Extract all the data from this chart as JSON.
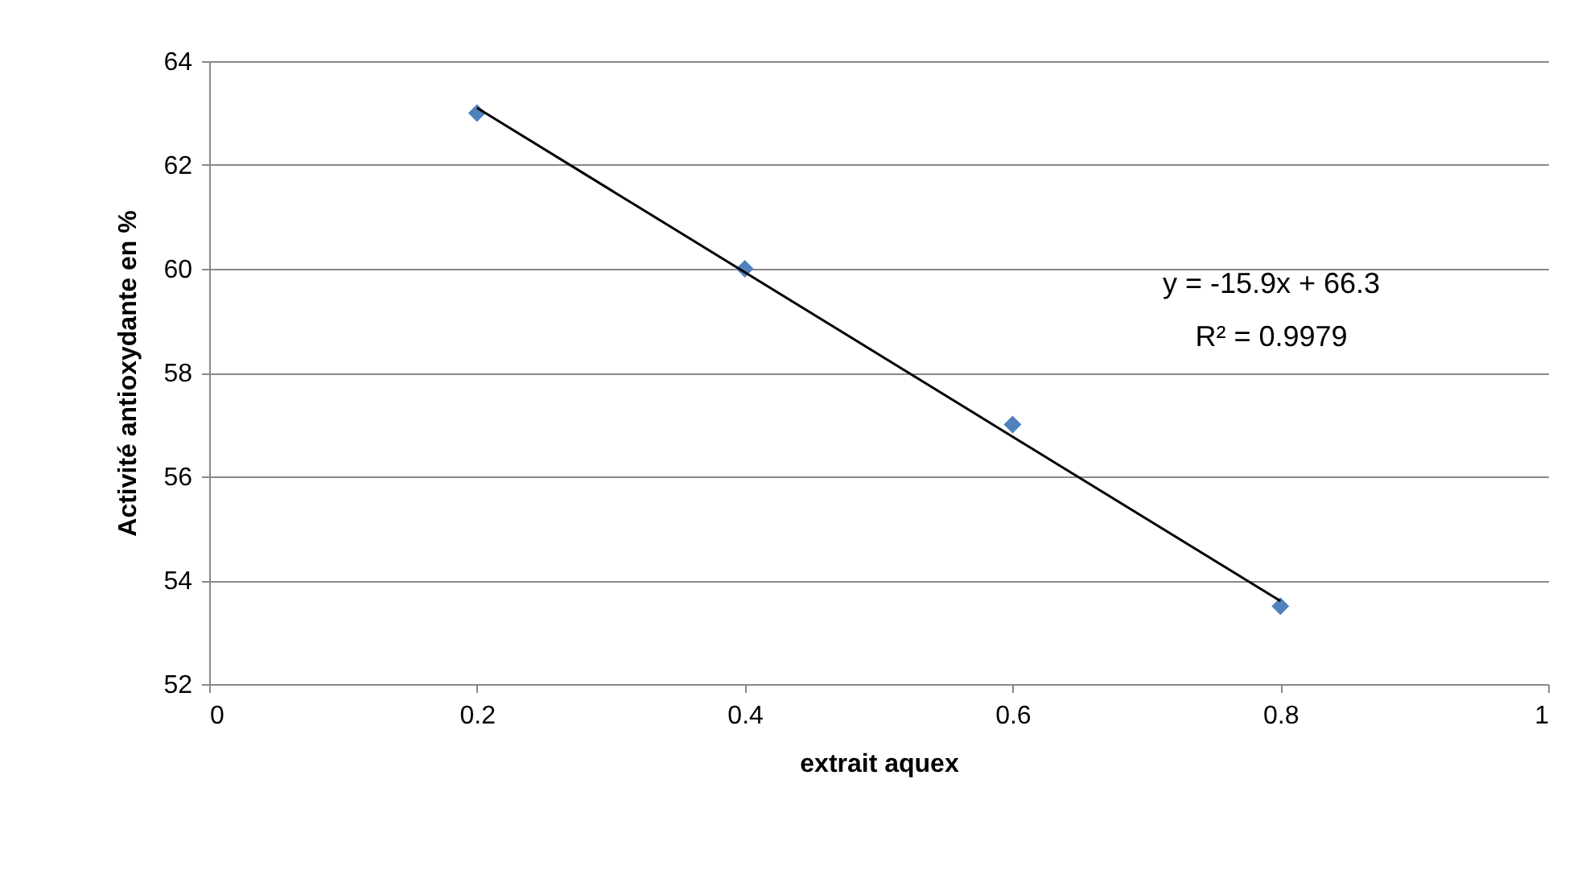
{
  "chart_data": {
    "type": "scatter",
    "xlabel": "extrait aquex",
    "ylabel": "Activité antioxydante en %",
    "x": [
      0.2,
      0.4,
      0.6,
      0.8
    ],
    "series": [
      {
        "color": "#4f81bd",
        "values": [
          63,
          60,
          57,
          53.5
        ]
      },
      {
        "type": "line",
        "color": "#000000",
        "marker": "none",
        "x": [
          0.2,
          0.8
        ],
        "values": [
          63.1,
          53.6
        ]
      }
    ],
    "xlim": [
      0,
      1
    ],
    "xticks": [
      0,
      0.2,
      0.4,
      0.6,
      0.8,
      1
    ],
    "ylim": [
      52,
      64
    ],
    "yticks": [
      52,
      54,
      56,
      58,
      60,
      62,
      64
    ],
    "annotations": [
      "y = -15.9x + 66.3",
      "R² = 0.9979"
    ],
    "grid": "y",
    "marker": "diamond",
    "line_style": "solid"
  }
}
